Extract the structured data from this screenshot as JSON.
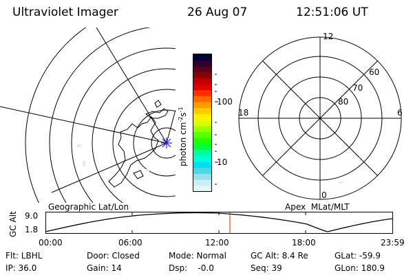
{
  "header": {
    "instrument": "Ultraviolet Imager",
    "date": "26 Aug 07",
    "time": "12:51:06 UT"
  },
  "colorbar": {
    "unit_main": "photon cm",
    "unit_sup1": "-2",
    "unit_mid": "s",
    "unit_sup2": "-1",
    "tick_100": "100",
    "tick_10": "10",
    "colors": [
      "#00003a",
      "#2b0032",
      "#5a0018",
      "#8a0000",
      "#bf0000",
      "#e10000",
      "#ff2e00",
      "#ff6a00",
      "#ff9d00",
      "#ffcc00",
      "#fff000",
      "#d8ff00",
      "#9cff00",
      "#5cff00",
      "#22ff00",
      "#00ff3a",
      "#00ff9a",
      "#00ffd6",
      "#00e0f0",
      "#52d6e6",
      "#9adfea",
      "#c9eef4",
      "#e6f5f8"
    ]
  },
  "polar": {
    "mlt_12": "12",
    "mlt_18": "18",
    "mlt_6": "6",
    "mlt_0": "0",
    "lat_60": "60",
    "lat_70": "70",
    "lat_80": "80"
  },
  "labels": {
    "geo": "Geographic Lat/Lon",
    "apex": "Apex  MLat/MLT"
  },
  "timeline": {
    "axis_label": "GC Alt",
    "ytick_top": "9.0",
    "ytick_bottom": "1.8",
    "xticks": [
      "00:00",
      "06:00",
      "12:00",
      "18:00",
      "23:59"
    ],
    "current_time_marker": "12:51"
  },
  "info": {
    "filter": "Flt: LBHL",
    "ip": "IP: 36.0",
    "door": "Door: Closed",
    "gain": "Gain: 14",
    "mode": "Mode: Normal",
    "dsp": "Dsp:    -0.0",
    "gc_alt": "GC Alt: 8.4 Re",
    "seq": "Seq: 39",
    "glat": "GLat: -59.9",
    "glon": "GLon: 180.9"
  }
}
